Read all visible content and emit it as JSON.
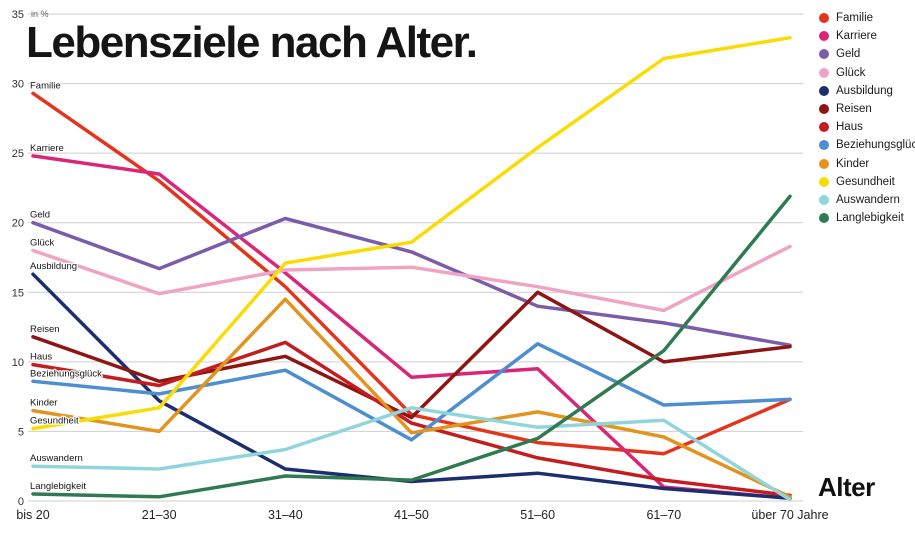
{
  "chart_data": {
    "type": "line",
    "title": "Lebensziele nach Alter.",
    "x_axis_title": "Alter",
    "y_unit": "in %",
    "x_categories": [
      "bis 20",
      "21–30",
      "31–40",
      "41–50",
      "51–60",
      "61–70",
      "über 70 Jahre"
    ],
    "y_ticks": [
      0,
      5,
      10,
      15,
      20,
      25,
      30,
      35
    ],
    "ylim": [
      0,
      35
    ],
    "grid": true,
    "legend_position": "top-right",
    "series": [
      {
        "name": "Familie",
        "color": "#e5341c",
        "values": [
          29.3,
          23.0,
          15.4,
          6.2,
          4.2,
          3.4,
          7.3
        ]
      },
      {
        "name": "Karriere",
        "color": "#da2579",
        "values": [
          24.8,
          23.5,
          16.4,
          8.9,
          9.5,
          1.0,
          0.2
        ]
      },
      {
        "name": "Geld",
        "color": "#7a5ca8",
        "values": [
          20.0,
          16.7,
          20.3,
          17.9,
          14.0,
          12.8,
          11.2
        ]
      },
      {
        "name": "Glück",
        "color": "#efa3c5",
        "values": [
          18.0,
          14.9,
          16.6,
          16.8,
          15.4,
          13.7,
          18.3
        ]
      },
      {
        "name": "Ausbildung",
        "color": "#1d2e6e",
        "values": [
          16.3,
          7.2,
          2.3,
          1.4,
          2.0,
          0.9,
          0.2
        ]
      },
      {
        "name": "Reisen",
        "color": "#8e1511",
        "values": [
          11.8,
          8.6,
          10.4,
          6.0,
          15.0,
          10.0,
          11.1
        ]
      },
      {
        "name": "Haus",
        "color": "#c31d20",
        "values": [
          9.8,
          8.3,
          11.4,
          5.6,
          3.1,
          1.5,
          0.4
        ]
      },
      {
        "name": "Beziehungsglück",
        "color": "#4d8ed0",
        "values": [
          8.6,
          7.7,
          9.4,
          4.4,
          11.3,
          6.9,
          7.3
        ]
      },
      {
        "name": "Kinder",
        "color": "#e3941e",
        "values": [
          6.5,
          5.0,
          14.5,
          4.9,
          6.4,
          4.6,
          0.3
        ]
      },
      {
        "name": "Gesundheit",
        "color": "#f9dc04",
        "values": [
          5.2,
          6.7,
          17.1,
          18.6,
          25.4,
          31.8,
          33.3
        ]
      },
      {
        "name": "Auswandern",
        "color": "#90d5dc",
        "values": [
          2.5,
          2.3,
          3.7,
          6.7,
          5.3,
          5.8,
          0.1
        ]
      },
      {
        "name": "Langlebigkeit",
        "color": "#2f7a50",
        "values": [
          0.5,
          0.3,
          1.8,
          1.5,
          4.5,
          10.8,
          21.9
        ]
      }
    ]
  }
}
